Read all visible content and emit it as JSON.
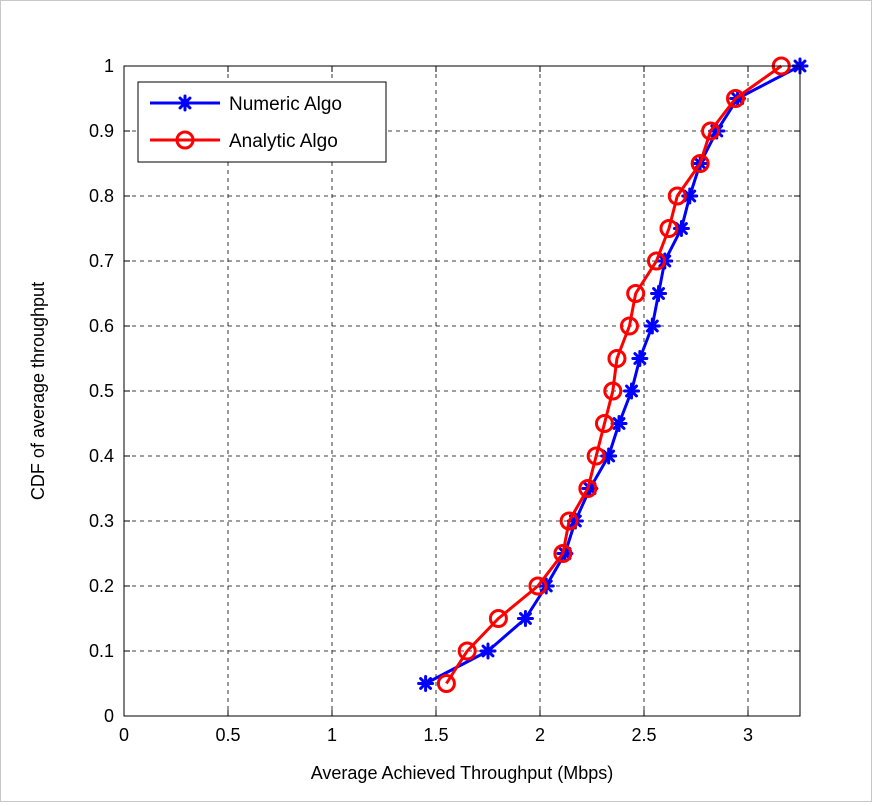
{
  "chart_data": {
    "type": "line",
    "title": "",
    "xlabel": "Average Achieved Throughput (Mbps)",
    "ylabel": "CDF of average throughput",
    "xlim": [
      0,
      3.25
    ],
    "ylim": [
      0,
      1
    ],
    "xticks": [
      0,
      0.5,
      1,
      1.5,
      2,
      2.5,
      3
    ],
    "xtick_labels": [
      "0",
      "0.5",
      "1",
      "1.5",
      "2",
      "2.5",
      "3"
    ],
    "yticks": [
      0,
      0.1,
      0.2,
      0.3,
      0.4,
      0.5,
      0.6,
      0.7,
      0.8,
      0.9,
      1
    ],
    "ytick_labels": [
      "0",
      "0.1",
      "0.2",
      "0.3",
      "0.4",
      "0.5",
      "0.6",
      "0.7",
      "0.8",
      "0.9",
      "1"
    ],
    "grid": true,
    "legend_position": "top-left",
    "series": [
      {
        "name": "Numeric Algo",
        "color": "#0000ff",
        "marker": "asterisk",
        "x": [
          1.45,
          1.75,
          1.93,
          2.03,
          2.12,
          2.17,
          2.24,
          2.33,
          2.38,
          2.44,
          2.48,
          2.54,
          2.57,
          2.6,
          2.68,
          2.72,
          2.77,
          2.85,
          2.95,
          3.25
        ],
        "y": [
          0.05,
          0.1,
          0.15,
          0.2,
          0.25,
          0.3,
          0.35,
          0.4,
          0.45,
          0.5,
          0.55,
          0.6,
          0.65,
          0.7,
          0.75,
          0.8,
          0.85,
          0.9,
          0.95,
          1.0
        ]
      },
      {
        "name": "Analytic Algo",
        "color": "#ff0000",
        "marker": "circle",
        "x": [
          1.55,
          1.65,
          1.8,
          1.99,
          2.11,
          2.14,
          2.23,
          2.27,
          2.31,
          2.35,
          2.37,
          2.43,
          2.46,
          2.56,
          2.62,
          2.66,
          2.77,
          2.82,
          2.94,
          3.16
        ],
        "y": [
          0.05,
          0.1,
          0.15,
          0.2,
          0.25,
          0.3,
          0.35,
          0.4,
          0.45,
          0.5,
          0.55,
          0.6,
          0.65,
          0.7,
          0.75,
          0.8,
          0.85,
          0.9,
          0.95,
          1.0
        ]
      }
    ]
  }
}
